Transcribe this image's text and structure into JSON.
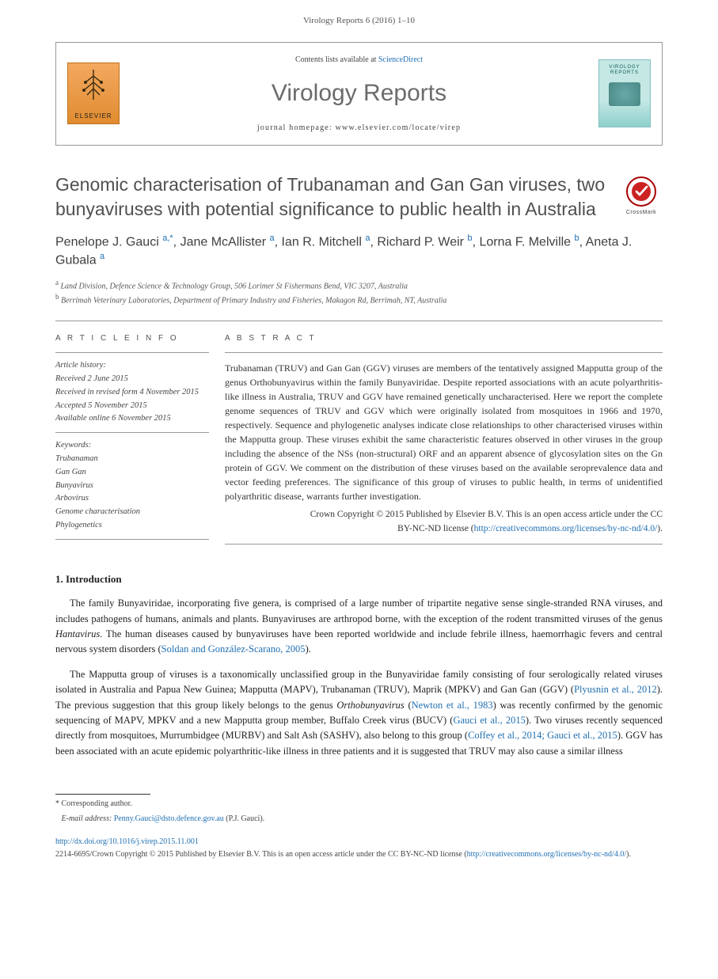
{
  "citation_top": "Virology Reports 6 (2016) 1–10",
  "header": {
    "contents_avail_prefix": "Contents lists available at ",
    "contents_avail_link": "ScienceDirect",
    "journal_name": "Virology Reports",
    "homepage_label": "journal homepage: www.elsevier.com/locate/virep",
    "publisher_label": "ELSEVIER",
    "cover_label": "VIROLOGY\nREPORTS"
  },
  "crossmark_label": "CrossMark",
  "title": "Genomic characterisation of Trubanaman and Gan Gan viruses, two bunyaviruses with potential significance to public health in Australia",
  "authors_html": "Penelope J. Gauci <sup class='aff'>a,*</sup>, Jane McAllister <sup class='aff'>a</sup>, Ian R. Mitchell <sup class='aff'>a</sup>, Richard P. Weir <sup class='aff'>b</sup>, Lorna F. Melville <sup class='aff'>b</sup>, Aneta J. Gubala <sup class='aff'>a</sup>",
  "affiliations": {
    "a": "Land Division, Defence Science & Technology Group, 506 Lorimer St Fishermans Bend, VIC 3207, Australia",
    "b": "Berrimah Veterinary Laboratories, Department of Primary Industry and Fisheries, Makagon Rd, Berrimah, NT, Australia"
  },
  "info_head": "A R T I C L E   I N F O",
  "abstract_head": "A B S T R A C T",
  "history": {
    "label": "Article history:",
    "received": "Received 2 June 2015",
    "revised": "Received in revised form 4 November 2015",
    "accepted": "Accepted 5 November 2015",
    "online": "Available online 6 November 2015"
  },
  "keywords": {
    "label": "Keywords:",
    "items": [
      "Trubanaman",
      "Gan Gan",
      "Bunyavirus",
      "Arbovirus",
      "Genome characterisation",
      "Phylogenetics"
    ]
  },
  "abstract": "Trubanaman (TRUV) and Gan Gan (GGV) viruses are members of the tentatively assigned Mapputta group of the genus Orthobunyavirus within the family Bunyaviridae. Despite reported associations with an acute polyarthritis-like illness in Australia, TRUV and GGV have remained genetically uncharacterised. Here we report the complete genome sequences of TRUV and GGV which were originally isolated from mosquitoes in 1966 and 1970, respectively. Sequence and phylogenetic analyses indicate close relationships to other characterised viruses within the Mapputta group. These viruses exhibit the same characteristic features observed in other viruses in the group including the absence of the NSs (non-structural) ORF and an apparent absence of glycosylation sites on the Gn protein of GGV. We comment on the distribution of these viruses based on the available seroprevalence data and vector feeding preferences. The significance of this group of viruses to public health, in terms of unidentified polyarthritic disease, warrants further investigation.",
  "copyright": {
    "line1": "Crown Copyright © 2015 Published by Elsevier B.V. This is an open access article under the CC",
    "line2_prefix": "BY-NC-ND license (",
    "license_url": "http://creativecommons.org/licenses/by-nc-nd/4.0/",
    "line2_suffix": ")."
  },
  "intro_heading": "1. Introduction",
  "para1_html": "The family Bunyaviridae, incorporating five genera, is comprised of a large number of tripartite negative sense single-stranded RNA viruses, and includes pathogens of humans, animals and plants. Bunyaviruses are arthropod borne, with the exception of the rodent transmitted viruses of the genus <i>Hantavirus</i>. The human diseases caused by bunyaviruses have been reported worldwide and include febrile illness, haemorrhagic fevers and central nervous system disorders (<a href='#'>Soldan and González-Scarano, 2005</a>).",
  "para2_html": "The Mapputta group of viruses is a taxonomically unclassified group in the Bunyaviridae family consisting of four serologically related viruses isolated in Australia and Papua New Guinea; Mapputta (MAPV), Trubanaman (TRUV), Maprik (MPKV) and Gan Gan (GGV) (<a href='#'>Plyusnin et al., 2012</a>). The previous suggestion that this group likely belongs to the genus <i>Orthobunyavirus</i> (<a href='#'>Newton et al., 1983</a>) was recently confirmed by the genomic sequencing of MAPV, MPKV and a new Mapputta group member, Buffalo Creek virus (BUCV) (<a href='#'>Gauci et al., 2015</a>). Two viruses recently sequenced directly from mosquitoes, Murrumbidgee (MURBV) and Salt Ash (SASHV), also belong to this group (<a href='#'>Coffey et al., 2014; Gauci et al., 2015</a>). GGV has been associated with an acute epidemic polyarthritic-like illness in three patients and it is suggested that TRUV may also cause a similar illness",
  "footnote": {
    "corr": "Corresponding author.",
    "email_label": "E-mail address:",
    "email": "Penny.Gauci@dsto.defence.gov.au",
    "email_suffix": " (P.J. Gauci)."
  },
  "doi": {
    "url": "http://dx.doi.org/10.1016/j.virep.2015.11.001",
    "issn_line_prefix": "2214-6695/Crown Copyright © 2015 Published by Elsevier B.V. This is an open access article under the CC BY-NC-ND license (",
    "license_url": "http://creativecommons.org/licenses/by-nc-nd/4.0/",
    "issn_line_suffix": ")."
  },
  "colors": {
    "link": "#1f6fb2",
    "text": "#333333",
    "rule": "#999999",
    "heading": "#505050"
  }
}
